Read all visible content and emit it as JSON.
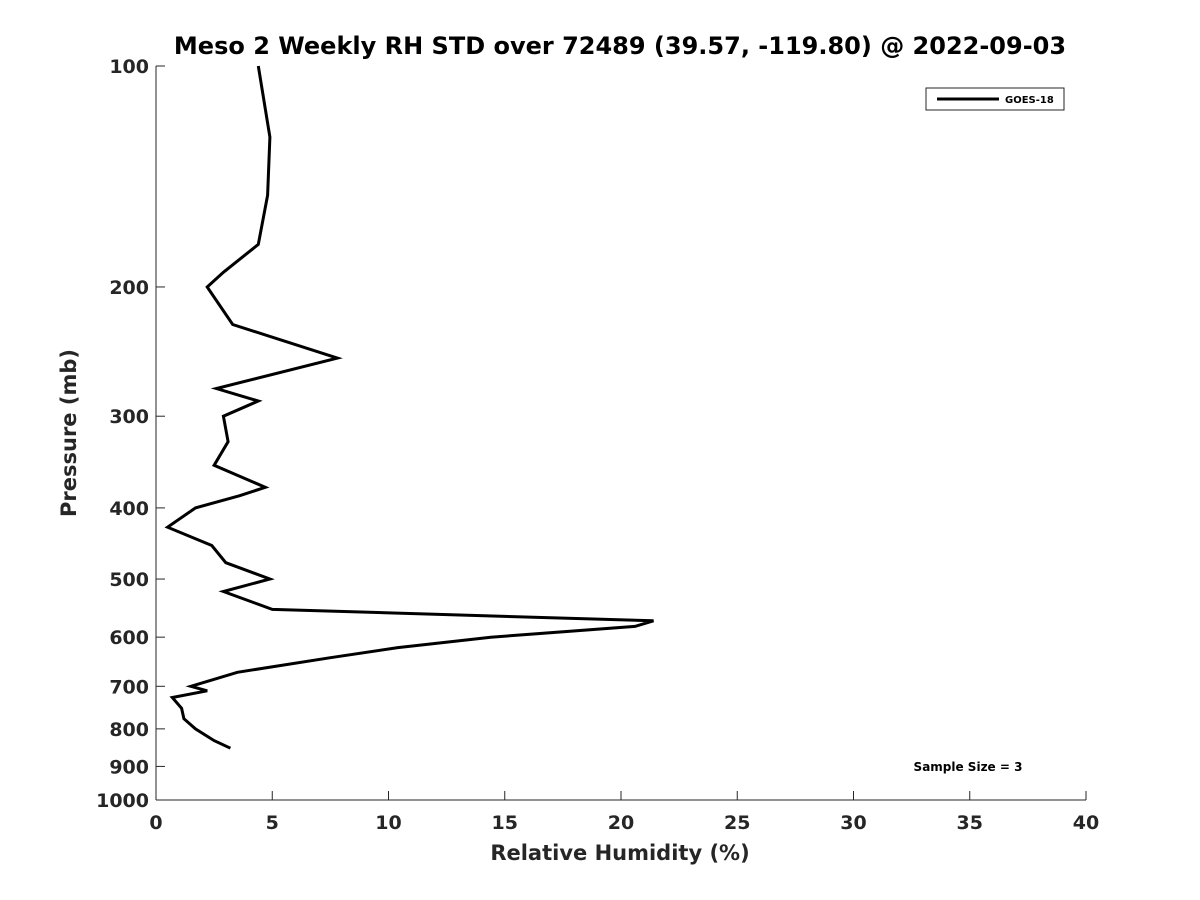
{
  "chart_data": {
    "type": "line",
    "title": "Meso 2 Weekly RH STD over 72489 (39.57, -119.80) @ 2022-09-03",
    "xlabel": "Relative Humidity (%)",
    "ylabel": "Pressure (mb)",
    "xlim": [
      0,
      40
    ],
    "ylim": [
      100,
      1000
    ],
    "y_scale": "log",
    "y_direction": "reversed",
    "x_ticks": [
      0,
      5,
      10,
      15,
      20,
      25,
      30,
      35,
      40
    ],
    "x_tick_labels": [
      "0",
      "5",
      "10",
      "15",
      "20",
      "25",
      "30",
      "35",
      "40"
    ],
    "y_ticks": [
      100,
      200,
      300,
      400,
      500,
      600,
      700,
      800,
      900,
      1000
    ],
    "y_tick_labels": [
      "100",
      "200",
      "300",
      "400",
      "500",
      "600",
      "700",
      "800",
      "900",
      "1000"
    ],
    "grid": false,
    "legend_position": "top-right",
    "series": [
      {
        "name": "GOES-18",
        "color": "#000000",
        "points": [
          [
            4.4,
            100
          ],
          [
            4.9,
            125
          ],
          [
            4.8,
            150
          ],
          [
            4.4,
            175
          ],
          [
            2.9,
            191
          ],
          [
            2.2,
            200
          ],
          [
            3.3,
            225
          ],
          [
            7.8,
            250
          ],
          [
            2.6,
            275
          ],
          [
            4.4,
            286
          ],
          [
            2.9,
            300
          ],
          [
            3.1,
            325
          ],
          [
            2.5,
            350
          ],
          [
            4.7,
            375
          ],
          [
            3.6,
            385
          ],
          [
            1.7,
            400
          ],
          [
            0.5,
            425
          ],
          [
            2.4,
            450
          ],
          [
            3.0,
            475
          ],
          [
            4.9,
            500
          ],
          [
            2.9,
            520
          ],
          [
            5.0,
            550
          ],
          [
            21.4,
            570
          ],
          [
            20.6,
            580
          ],
          [
            14.4,
            600
          ],
          [
            10.4,
            620
          ],
          [
            7.5,
            640
          ],
          [
            3.5,
            670
          ],
          [
            1.5,
            700
          ],
          [
            2.2,
            710
          ],
          [
            0.7,
            725
          ],
          [
            1.1,
            750
          ],
          [
            1.2,
            775
          ],
          [
            1.7,
            800
          ],
          [
            2.5,
            830
          ],
          [
            3.2,
            850
          ]
        ]
      }
    ],
    "annotations": [
      "Sample Size = 3"
    ]
  }
}
